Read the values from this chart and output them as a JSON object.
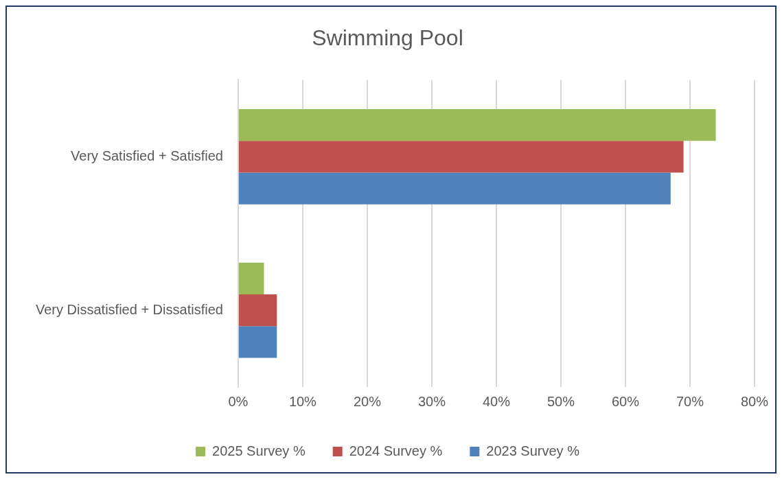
{
  "chart_data": {
    "type": "bar",
    "orientation": "horizontal",
    "title": "Swimming Pool",
    "categories": [
      "Very Satisfied + Satisfied",
      "Very Dissatisfied + Dissatisfied"
    ],
    "series": [
      {
        "name": "2025 Survey %",
        "color": "#9bbb59",
        "values": [
          74,
          4
        ]
      },
      {
        "name": "2024 Survey %",
        "color": "#c0504d",
        "values": [
          69,
          6
        ]
      },
      {
        "name": "2023 Survey %",
        "color": "#4f81bd",
        "values": [
          67,
          6
        ]
      }
    ],
    "xlim": [
      0,
      80
    ],
    "xticks": [
      {
        "value": 0,
        "label": "0%"
      },
      {
        "value": 10,
        "label": "10%"
      },
      {
        "value": 20,
        "label": "20%"
      },
      {
        "value": 30,
        "label": "30%"
      },
      {
        "value": 40,
        "label": "40%"
      },
      {
        "value": 50,
        "label": "50%"
      },
      {
        "value": 60,
        "label": "60%"
      },
      {
        "value": 70,
        "label": "70%"
      },
      {
        "value": 80,
        "label": "80%"
      }
    ],
    "grid": "x",
    "legend": "bottom"
  }
}
